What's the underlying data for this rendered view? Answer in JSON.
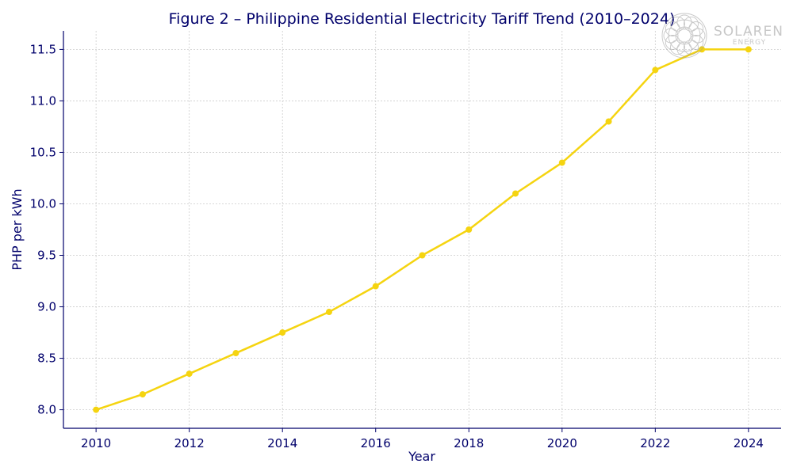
{
  "chart_data": {
    "type": "line",
    "title": "Figure 2 – Philippine Residential Electricity Tariff Trend (2010–2024)",
    "xlabel": "Year",
    "ylabel": "PHP per kWh",
    "x": [
      2010,
      2011,
      2012,
      2013,
      2014,
      2015,
      2016,
      2017,
      2018,
      2019,
      2020,
      2021,
      2022,
      2023,
      2024
    ],
    "series": [
      {
        "values": [
          8.0,
          8.15,
          8.35,
          8.55,
          8.75,
          8.95,
          9.2,
          9.5,
          9.75,
          10.1,
          10.4,
          10.8,
          11.3,
          11.5,
          11.5
        ]
      }
    ],
    "xlim": [
      2009.3,
      2024.7
    ],
    "ylim": [
      7.82,
      11.68
    ],
    "x_ticks": [
      "2010",
      "2012",
      "2014",
      "2016",
      "2018",
      "2020",
      "2022",
      "2024"
    ],
    "y_ticks": [
      "8.0",
      "8.5",
      "9.0",
      "9.5",
      "10.0",
      "10.5",
      "11.0",
      "11.5"
    ],
    "grid": true,
    "colors": {
      "line": "#f5d410",
      "axis": "#00006b",
      "grid": "#cccccc"
    }
  },
  "logo": {
    "name": "SOLAREN",
    "sub": "ENERGY"
  }
}
